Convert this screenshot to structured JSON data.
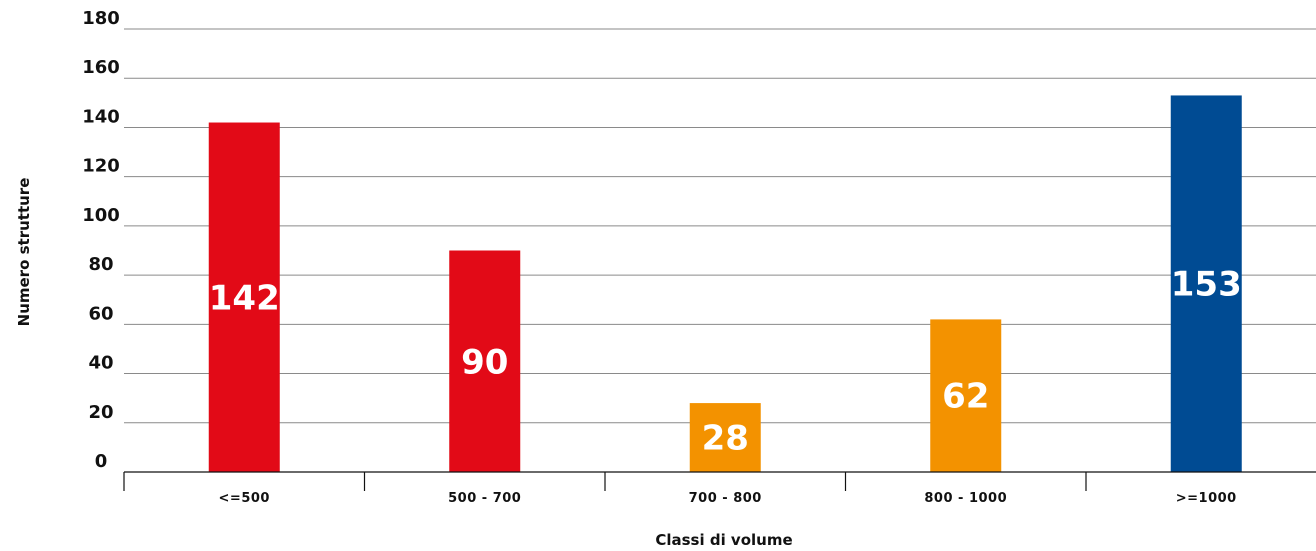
{
  "chart_data": {
    "type": "bar",
    "categories": [
      "<=500",
      "500 - 700",
      "700 - 800",
      "800 - 1000",
      ">=1000"
    ],
    "values": [
      142,
      90,
      28,
      62,
      153
    ],
    "colors": [
      "#e20a17",
      "#e20a17",
      "#f39200",
      "#f39200",
      "#004b93"
    ],
    "xlabel": "Classi di volume",
    "ylabel": "Numero strutture",
    "ylim": [
      0,
      180
    ],
    "yticks": [
      0,
      20,
      40,
      60,
      80,
      100,
      120,
      140,
      160,
      180
    ],
    "grid": true,
    "legend": "none"
  }
}
